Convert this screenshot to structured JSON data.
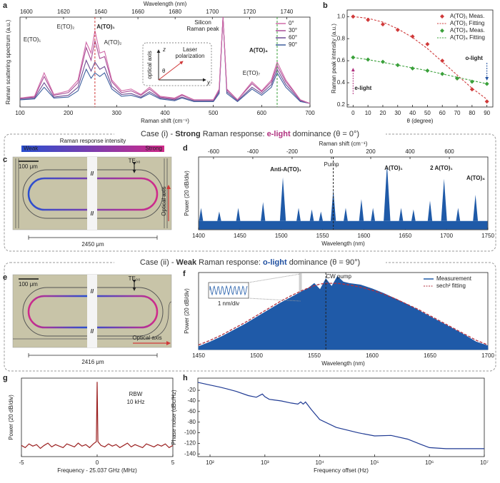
{
  "chart_data": [
    {
      "panel": "a",
      "type": "line",
      "xlabel": "Raman shift (cm⁻¹)",
      "ylabel": "Raman scattering spectrum (a.u.)",
      "x2label": "Wavelength (nm)",
      "xlim": [
        100,
        700
      ],
      "xticks": [
        100,
        200,
        300,
        400,
        500,
        600,
        700
      ],
      "x2lim": [
        1596.6,
        1752.5
      ],
      "x2ticks": [
        1600,
        1620,
        1640,
        1660,
        1680,
        1700,
        1720,
        1740
      ],
      "ylim": [
        0,
        1
      ],
      "x": [
        100,
        130,
        150,
        170,
        200,
        220,
        237,
        247,
        255,
        265,
        275,
        290,
        310,
        330,
        350,
        368,
        390,
        420,
        435,
        460,
        500,
        512,
        520,
        528,
        550,
        580,
        600,
        620,
        632,
        650,
        680,
        700
      ],
      "series": [
        {
          "name": "0°",
          "color": "#d06aa8",
          "style": "line",
          "values": [
            0.1,
            0.12,
            0.38,
            0.14,
            0.18,
            0.3,
            0.72,
            0.6,
            0.85,
            0.6,
            0.62,
            0.3,
            0.18,
            0.2,
            0.14,
            0.22,
            0.12,
            0.1,
            0.14,
            0.08,
            0.08,
            0.2,
            1.0,
            0.2,
            0.08,
            0.28,
            0.18,
            0.3,
            0.5,
            0.3,
            0.08,
            0.04
          ]
        },
        {
          "name": "30°",
          "color": "#a84c96",
          "style": "line",
          "values": [
            0.1,
            0.11,
            0.34,
            0.13,
            0.16,
            0.27,
            0.66,
            0.52,
            0.74,
            0.54,
            0.56,
            0.28,
            0.16,
            0.18,
            0.13,
            0.2,
            0.11,
            0.09,
            0.13,
            0.08,
            0.08,
            0.19,
            1.0,
            0.19,
            0.08,
            0.26,
            0.17,
            0.28,
            0.46,
            0.28,
            0.08,
            0.04
          ]
        },
        {
          "name": "60°",
          "color": "#6c4b92",
          "style": "line",
          "values": [
            0.09,
            0.1,
            0.27,
            0.11,
            0.13,
            0.22,
            0.52,
            0.4,
            0.5,
            0.42,
            0.45,
            0.23,
            0.14,
            0.15,
            0.11,
            0.17,
            0.1,
            0.08,
            0.11,
            0.07,
            0.07,
            0.17,
            1.0,
            0.17,
            0.07,
            0.22,
            0.15,
            0.25,
            0.42,
            0.25,
            0.07,
            0.04
          ]
        },
        {
          "name": "90°",
          "color": "#3e5f9e",
          "style": "line",
          "values": [
            0.08,
            0.09,
            0.22,
            0.1,
            0.11,
            0.18,
            0.42,
            0.32,
            0.38,
            0.34,
            0.38,
            0.2,
            0.12,
            0.13,
            0.1,
            0.15,
            0.09,
            0.07,
            0.1,
            0.06,
            0.06,
            0.15,
            1.0,
            0.15,
            0.06,
            0.2,
            0.13,
            0.22,
            0.38,
            0.22,
            0.06,
            0.04
          ]
        }
      ],
      "vlines": [
        {
          "value": 255,
          "color": "#d03a3a"
        },
        {
          "value": 632,
          "color": "#3aa03a"
        }
      ],
      "annotations": [
        {
          "text": "E(TO)₁",
          "color": "#222"
        },
        {
          "text": "E(TO)₂",
          "color": "#222"
        },
        {
          "text": "A(TO)₁",
          "color": "#d03a3a",
          "bold": true
        },
        {
          "text": "A(TO)₂",
          "color": "#222"
        },
        {
          "text": "Silicon",
          "color": "#222"
        },
        {
          "text": "Raman peak",
          "color": "#222"
        },
        {
          "text": "E(TO)₇",
          "color": "#222"
        },
        {
          "text": "A(TO)₄",
          "color": "#3aa03a",
          "bold": true
        }
      ],
      "inset": {
        "axis": "optical axis",
        "laser": "Laser",
        "polarization": "polarization",
        "z": "z",
        "y": "y",
        "angle": "θ"
      },
      "legend": "upper right"
    },
    {
      "panel": "b",
      "type": "scatter",
      "xlabel": "θ (degree)",
      "ylabel": "Raman peak intensity (a.u.)",
      "xlim": [
        -4,
        94
      ],
      "xticks": [
        0,
        10,
        20,
        30,
        40,
        50,
        60,
        70,
        80,
        90
      ],
      "ylim": [
        0.18,
        1.06
      ],
      "yticks": [
        0.2,
        0.4,
        0.6,
        0.8,
        {
          "value": 1,
          "label": "1.0"
        }
      ],
      "x": [
        0,
        10,
        20,
        30,
        40,
        50,
        60,
        70,
        80,
        90
      ],
      "series": [
        {
          "name": "A(TO)₁ Meas.",
          "color": "#d03a3a",
          "style": "marker",
          "values": [
            1.0,
            0.97,
            0.93,
            0.88,
            0.82,
            0.75,
            0.6,
            0.44,
            0.34,
            0.23
          ]
        },
        {
          "name": "A(TO)₁ Fitting",
          "color": "#d03a3a",
          "style": "dashed",
          "values": [
            1.0,
            0.985,
            0.95,
            0.89,
            0.81,
            0.71,
            0.59,
            0.47,
            0.35,
            0.25
          ]
        },
        {
          "name": "A(TO)₄ Meas.",
          "color": "#3aa03a",
          "style": "marker",
          "values": [
            0.63,
            0.61,
            0.59,
            0.56,
            0.53,
            0.51,
            0.48,
            0.44,
            0.41,
            0.39
          ]
        },
        {
          "name": "A(TO)₄ Fitting",
          "color": "#3aa03a",
          "style": "dashed",
          "values": [
            0.63,
            0.61,
            0.585,
            0.56,
            0.535,
            0.51,
            0.48,
            0.45,
            0.42,
            0.39
          ]
        }
      ],
      "annotations": [
        {
          "text": "e-light",
          "color": "#b0307f",
          "bold": true
        },
        {
          "text": "o-light",
          "color": "#1f4fa0",
          "bold": true
        }
      ],
      "legend": "upper right"
    },
    {
      "panel": "d",
      "type": "spikes",
      "xlabel": "Wavelength (nm)",
      "ylabel": "Power (20 dB/div)",
      "x2label": "Raman shift (cm⁻¹)",
      "xlim": [
        1400,
        1750
      ],
      "xticks": [
        1400,
        1450,
        1500,
        1550,
        1600,
        1650,
        1700,
        1750
      ],
      "x2lim": [
        -676,
        796
      ],
      "x2ticks": [
        -600,
        -400,
        -200,
        0,
        200,
        400,
        600
      ],
      "ylim": [
        0,
        1
      ],
      "x": [
        1403,
        1425,
        1448,
        1478,
        1502,
        1521,
        1537,
        1548,
        1563,
        1578,
        1597,
        1611,
        1628,
        1645,
        1660,
        1680,
        1697,
        1714,
        1735
      ],
      "values": [
        0.3,
        0.25,
        0.3,
        0.38,
        0.72,
        0.3,
        0.28,
        0.25,
        0.55,
        0.3,
        0.42,
        0.3,
        0.9,
        0.3,
        0.28,
        0.4,
        0.7,
        0.3,
        0.48
      ],
      "noise_floor": 0.12,
      "color": "#1f5aa8",
      "vlines": [
        {
          "value": 1563,
          "color": "#222"
        }
      ],
      "annotations": [
        {
          "text": "Anti-A(TO)₁",
          "color": "#d03a3a",
          "bold": true
        },
        {
          "text": "Pump",
          "color": "#222"
        },
        {
          "text": "A(TO)₁",
          "color": "#d03a3a",
          "bold": true
        },
        {
          "text": "2 A(TO)₁",
          "color": "#d03a3a",
          "bold": true
        },
        {
          "text": "A(TO)₄",
          "color": "#3aa03a",
          "bold": true
        }
      ]
    },
    {
      "panel": "f",
      "type": "area",
      "xlabel": "Wavelength (nm)",
      "ylabel": "Power (20 dB/div)",
      "xlim": [
        1450,
        1700
      ],
      "xticks": [
        1450,
        1500,
        1550,
        1600,
        1650,
        1700
      ],
      "ylim": [
        0,
        1
      ],
      "x": [
        1450,
        1460,
        1470,
        1480,
        1490,
        1500,
        1510,
        1520,
        1530,
        1540,
        1545,
        1550,
        1555,
        1560,
        1565,
        1570,
        1575,
        1580,
        1590,
        1600,
        1610,
        1620,
        1630,
        1640,
        1650,
        1660,
        1670,
        1680,
        1690,
        1700
      ],
      "series": [
        {
          "name": "Measurement",
          "color": "#1f5aa8",
          "style": "line",
          "values": [
            0.04,
            0.1,
            0.17,
            0.25,
            0.33,
            0.42,
            0.51,
            0.6,
            0.68,
            0.76,
            0.8,
            0.86,
            0.78,
            0.92,
            0.82,
            0.95,
            0.88,
            0.86,
            0.84,
            0.79,
            0.73,
            0.66,
            0.59,
            0.51,
            0.43,
            0.35,
            0.27,
            0.19,
            0.1,
            0.05
          ]
        },
        {
          "name": "sech² fitting",
          "color": "#b03040",
          "style": "dashed",
          "values": [
            0.06,
            0.12,
            0.19,
            0.27,
            0.35,
            0.44,
            0.53,
            0.62,
            0.7,
            0.77,
            0.8,
            0.83,
            0.85,
            0.86,
            0.86,
            0.86,
            0.85,
            0.84,
            0.81,
            0.77,
            0.72,
            0.66,
            0.59,
            0.52,
            0.44,
            0.36,
            0.28,
            0.2,
            0.12,
            0.06
          ]
        }
      ],
      "vlines": [
        {
          "value": 1560,
          "color": "#222"
        }
      ],
      "highlight": 1538,
      "annotations": [
        {
          "text": "CW pump",
          "color": "#222"
        },
        {
          "text": "1 nm/div",
          "color": "#222"
        }
      ],
      "legend": "upper right"
    },
    {
      "panel": "g",
      "type": "line",
      "xlabel": "Frequency - 25.037 GHz (MHz)",
      "ylabel": "Power (20 dB/div)",
      "xlim": [
        -5,
        5
      ],
      "xticks": [
        -5,
        0,
        5
      ],
      "ylim": [
        0,
        1.05
      ],
      "x": [
        -5,
        -4.75,
        -4.5,
        -4.25,
        -4,
        -3.75,
        -3.5,
        -3.25,
        -3,
        -2.75,
        -2.5,
        -2.25,
        -2,
        -1.75,
        -1.5,
        -1.25,
        -1,
        -0.75,
        -0.5,
        -0.25,
        -0.05,
        0,
        0.05,
        0.25,
        0.5,
        0.75,
        1,
        1.25,
        1.5,
        1.75,
        2,
        2.25,
        2.5,
        2.75,
        3,
        3.25,
        3.5,
        3.75,
        4,
        4.25,
        4.5,
        4.75,
        5
      ],
      "series": [
        {
          "color": "#9b2020",
          "values": [
            0.15,
            0.12,
            0.17,
            0.14,
            0.16,
            0.11,
            0.15,
            0.18,
            0.13,
            0.16,
            0.14,
            0.12,
            0.17,
            0.15,
            0.13,
            0.18,
            0.14,
            0.16,
            0.12,
            0.17,
            0.2,
            1.0,
            0.2,
            0.15,
            0.13,
            0.17,
            0.14,
            0.16,
            0.12,
            0.15,
            0.18,
            0.13,
            0.16,
            0.14,
            0.12,
            0.17,
            0.15,
            0.13,
            0.16,
            0.14,
            0.17,
            0.12,
            0.15
          ]
        }
      ],
      "annotations": [
        {
          "text": "RBW",
          "color": "#222"
        },
        {
          "text": "10 kHz",
          "color": "#222"
        }
      ]
    },
    {
      "panel": "h",
      "type": "line",
      "xscale": "log",
      "xlabel": "Frequency offset (Hz)",
      "ylabel": "Phase noise (dBc/Hz)",
      "xlim": [
        60,
        10000000
      ],
      "xticks": [
        {
          "value": 100,
          "label": "10²"
        },
        {
          "value": 1000,
          "label": "10³"
        },
        {
          "value": 10000,
          "label": "10⁴"
        },
        {
          "value": 100000,
          "label": "10⁵"
        },
        {
          "value": 1000000,
          "label": "10⁶"
        },
        {
          "value": 10000000,
          "label": "10⁷"
        }
      ],
      "ylim": [
        -145,
        3
      ],
      "yticks": [
        -20,
        -40,
        -60,
        -80,
        -100,
        -120,
        -140
      ],
      "x": [
        60,
        100,
        150,
        200,
        300,
        500,
        700,
        900,
        1000,
        1200,
        2000,
        3000,
        4000,
        4500,
        5000,
        5500,
        7000,
        10000,
        20000,
        50000,
        100000,
        200000,
        400000,
        700000,
        1000000,
        2000000,
        10000000
      ],
      "series": [
        {
          "color": "#1f3a93",
          "values": [
            -5,
            -10,
            -14,
            -17,
            -22,
            -30,
            -33,
            -27,
            -32,
            -37,
            -40,
            -44,
            -46,
            -42,
            -46,
            -42,
            -56,
            -75,
            -90,
            -100,
            -106,
            -105,
            -112,
            -122,
            -128,
            -130,
            -130
          ]
        }
      ]
    }
  ],
  "cases": [
    {
      "parts": [
        {
          "text": "Case (i) - ",
          "color": "#333"
        },
        {
          "text": "Strong",
          "color": "#333",
          "bold": true
        },
        {
          "text": " Raman response: ",
          "color": "#333"
        },
        {
          "text": "e-light",
          "color": "#b0307f",
          "bold": true
        },
        {
          "text": " dominance (θ = 0°)",
          "color": "#333"
        }
      ]
    },
    {
      "parts": [
        {
          "text": "Case (ii) - ",
          "color": "#333"
        },
        {
          "text": "Weak",
          "color": "#333",
          "bold": true
        },
        {
          "text": " Raman response: ",
          "color": "#333"
        },
        {
          "text": "o-light",
          "color": "#1f4fa0",
          "bold": true
        },
        {
          "text": " dominance (θ = 90°)",
          "color": "#333"
        }
      ]
    }
  ],
  "images": [
    {
      "panel": "c",
      "scale": "100 μm",
      "mode": "TE₀₀",
      "axis_label": "Optical axis",
      "length": "2450 μm",
      "break": "//",
      "colorbar_title": "Raman response intensity",
      "weak": "Weak",
      "strong": "Strong"
    },
    {
      "panel": "e",
      "scale": "100 μm",
      "mode": "TE₀₀",
      "axis_label": "Optical axis",
      "length": "2416 μm",
      "break": "//"
    }
  ]
}
